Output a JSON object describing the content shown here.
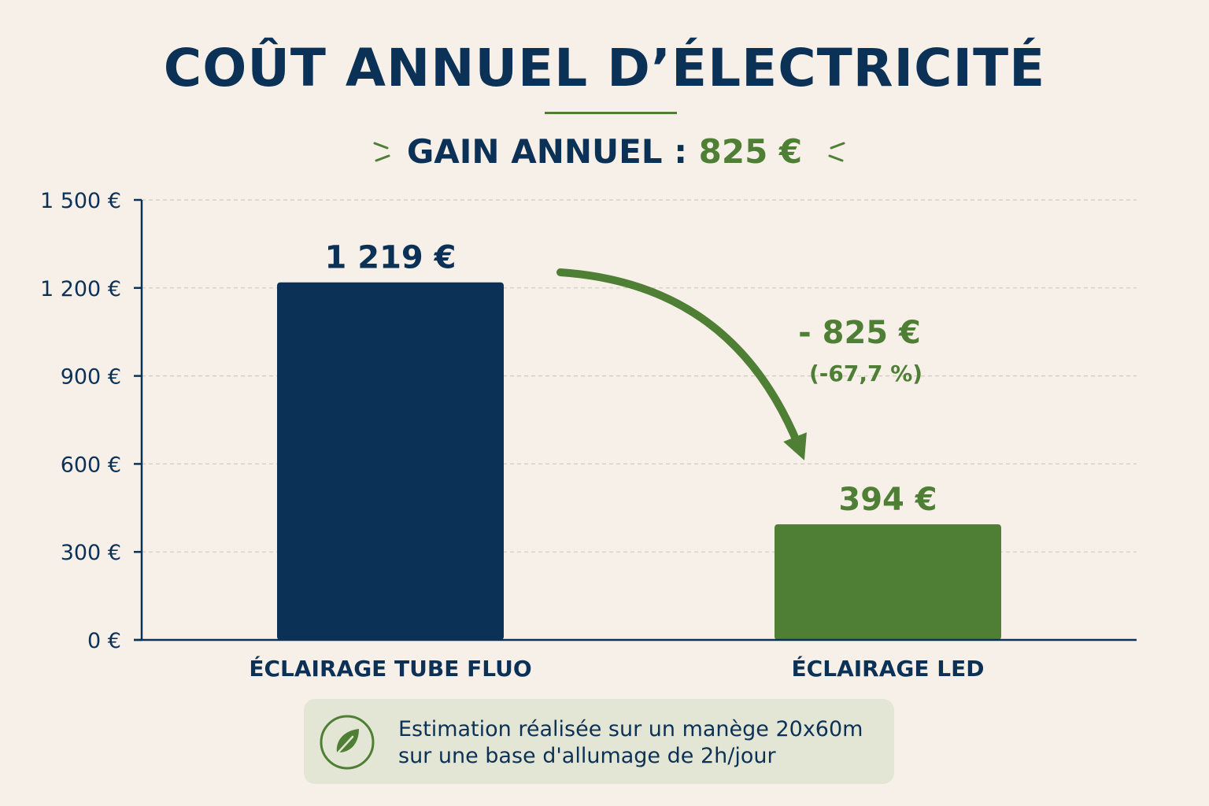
{
  "title": "COÛT ANNUEL D’ÉLECTRICITÉ",
  "subtitle": {
    "label": "GAIN ANNUEL :",
    "value": "825 €"
  },
  "colors": {
    "navy": "#0c3156",
    "green": "#4e7f35",
    "background": "#f6f0e8",
    "grid": "#cfcbbd"
  },
  "chart_data": {
    "type": "bar",
    "categories": [
      "ÉCLAIRAGE TUBE FLUO",
      "ÉCLAIRAGE LED"
    ],
    "values": [
      1219,
      394
    ],
    "value_labels": [
      "1 219 €",
      "394 €"
    ],
    "bar_colors": [
      "#0c3156",
      "#4e7f35"
    ],
    "ylim": [
      0,
      1500
    ],
    "yticks": [
      0,
      300,
      600,
      900,
      1200,
      1500
    ],
    "ytick_labels": [
      "0 €",
      "300 €",
      "600 €",
      "900 €",
      "1 200 €",
      "1 500 €"
    ],
    "grid": true,
    "annotation": {
      "amount": "- 825 €",
      "percent": "(-67,7 %)"
    }
  },
  "note": {
    "icon": "leaf-icon",
    "lines": [
      "Estimation réalisée sur un manège 20x60m",
      "sur une base d'allumage de 2h/jour"
    ]
  }
}
